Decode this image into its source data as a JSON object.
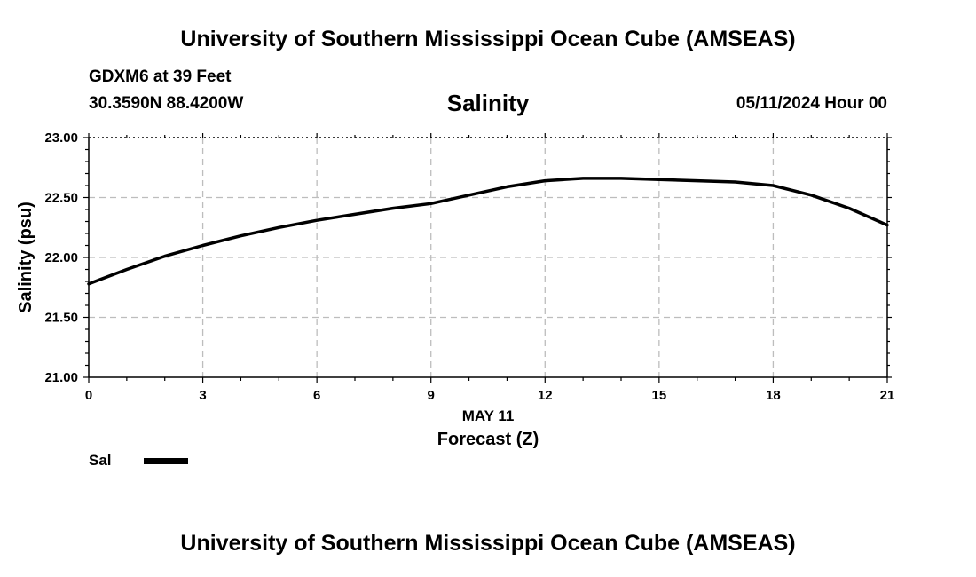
{
  "header": {
    "title": "University of Southern Mississippi Ocean Cube (AMSEAS)",
    "station": "GDXM6 at 39 Feet",
    "coords": "30.3590N  88.4200W",
    "chart_title": "Salinity",
    "datetime": "05/11/2024 Hour 00"
  },
  "footer": {
    "title": "University of Southern Mississippi Ocean Cube (AMSEAS)"
  },
  "legend": {
    "label": "Sal"
  },
  "chart_data": {
    "type": "line",
    "title": "Salinity",
    "xlabel": "Forecast (Z)",
    "xlabel_date": "MAY 11",
    "ylabel": "Salinity (psu)",
    "xlim": [
      0,
      21
    ],
    "ylim": [
      21.0,
      23.0
    ],
    "xticks": [
      0,
      3,
      6,
      9,
      12,
      15,
      18,
      21
    ],
    "yticks": [
      21.0,
      21.5,
      22.0,
      22.5,
      23.0
    ],
    "ytick_labels": [
      "21.00",
      "21.50",
      "22.00",
      "22.50",
      "23.00"
    ],
    "grid": true,
    "series": [
      {
        "name": "Sal",
        "color": "#000000",
        "x": [
          0,
          1,
          2,
          3,
          4,
          5,
          6,
          7,
          8,
          9,
          10,
          11,
          12,
          13,
          14,
          15,
          16,
          17,
          18,
          19,
          20,
          21
        ],
        "y": [
          21.78,
          21.9,
          22.01,
          22.1,
          22.18,
          22.25,
          22.31,
          22.36,
          22.41,
          22.45,
          22.52,
          22.59,
          22.64,
          22.66,
          22.66,
          22.65,
          22.64,
          22.63,
          22.6,
          22.52,
          22.41,
          22.27
        ]
      }
    ]
  }
}
